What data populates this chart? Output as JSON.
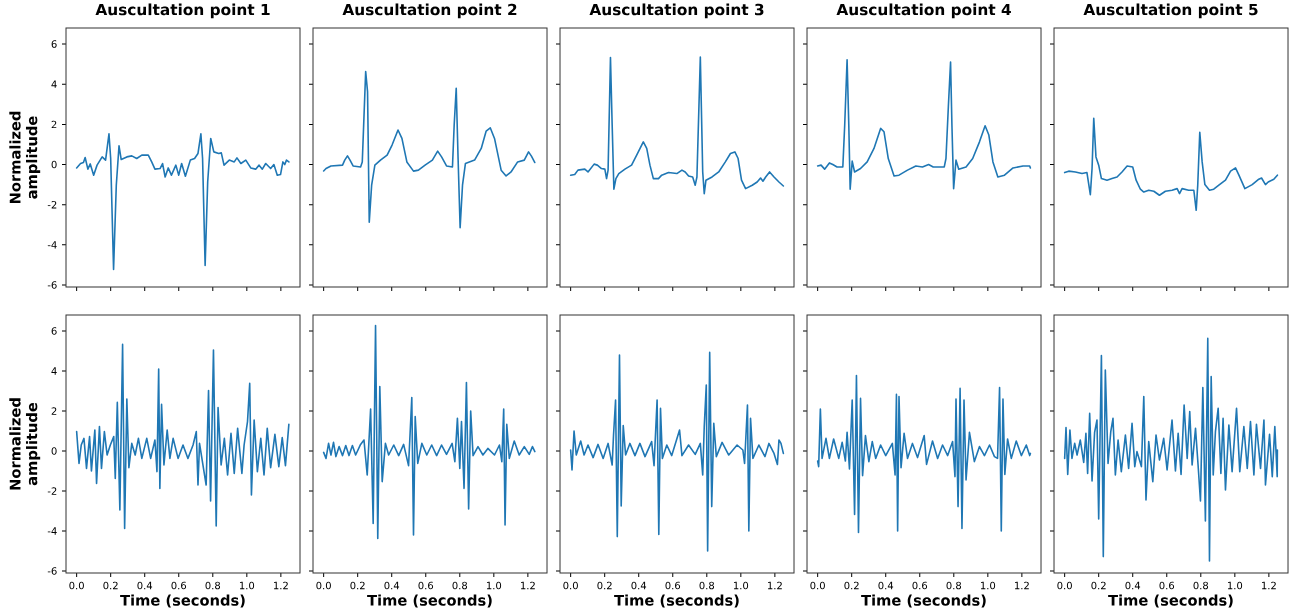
{
  "chart_data": [
    {
      "type": "line",
      "title": "Auscultation point 1",
      "ylabel": "Normalized amplitude",
      "tick_labels": "y",
      "color": "#1f77b4",
      "xlim": [
        -0.0625,
        1.3125
      ],
      "ylim": [
        -6.1,
        6.8
      ],
      "xticks": [
        {
          "value": 0,
          "label": null
        },
        {
          "value": 0.2,
          "label": null
        },
        {
          "value": 0.4,
          "label": null
        },
        {
          "value": 0.6,
          "label": null
        },
        {
          "value": 0.8,
          "label": null
        },
        {
          "value": 1.0,
          "label": null
        },
        {
          "value": 1.2,
          "label": null
        }
      ],
      "yticks": [
        -6,
        -4,
        -2,
        0,
        2,
        4,
        6
      ],
      "x": [
        0,
        0.023,
        0.04,
        0.05,
        0.066,
        0.08,
        0.1,
        0.12,
        0.15,
        0.17,
        0.19,
        0.2,
        0.217,
        0.233,
        0.249,
        0.262,
        0.295,
        0.324,
        0.353,
        0.383,
        0.421,
        0.441,
        0.46,
        0.49,
        0.505,
        0.52,
        0.538,
        0.557,
        0.583,
        0.6,
        0.617,
        0.639,
        0.668,
        0.693,
        0.713,
        0.73,
        0.74,
        0.755,
        0.77,
        0.788,
        0.806,
        0.835,
        0.85,
        0.866,
        0.897,
        0.926,
        0.942,
        0.965,
        0.994,
        1.023,
        1.052,
        1.072,
        1.091,
        1.111,
        1.14,
        1.159,
        1.179,
        1.198,
        1.212,
        1.223,
        1.233,
        1.247
      ],
      "values": [
        -0.17,
        0.05,
        0.1,
        0.35,
        -0.23,
        0.03,
        -0.53,
        -0.03,
        0.38,
        0.22,
        1.53,
        0.3,
        -5.23,
        -1.03,
        0.93,
        0.25,
        0.38,
        0.43,
        0.3,
        0.47,
        0.47,
        0.13,
        -0.23,
        -0.2,
        0.05,
        -0.62,
        -0.17,
        -0.53,
        -0.03,
        -0.53,
        0.05,
        -0.58,
        0.22,
        0.3,
        0.55,
        1.53,
        0.3,
        -5.03,
        -0.87,
        1.3,
        0.63,
        0.55,
        0.58,
        -0.03,
        0.22,
        0.13,
        0.33,
        0.05,
        0.22,
        -0.17,
        -0.23,
        -0.03,
        -0.23,
        0.05,
        -0.2,
        0,
        -0.53,
        -0.5,
        0.13,
        0,
        0.22,
        0.13
      ]
    },
    {
      "type": "line",
      "title": "Auscultation point 2",
      "tick_labels": false,
      "color": "#1f77b4",
      "xlim": [
        -0.0625,
        1.3125
      ],
      "ylim": [
        -6.1,
        6.8
      ],
      "xticks": [
        {
          "value": 0,
          "label": null
        },
        {
          "value": 0.2,
          "label": null
        },
        {
          "value": 0.4,
          "label": null
        },
        {
          "value": 0.6,
          "label": null
        },
        {
          "value": 0.8,
          "label": null
        },
        {
          "value": 1.0,
          "label": null
        },
        {
          "value": 1.2,
          "label": null
        }
      ],
      "yticks": [
        {
          "value": -6,
          "label": null
        },
        {
          "value": -4,
          "label": null
        },
        {
          "value": -2,
          "label": null
        },
        {
          "value": 0,
          "label": null
        },
        {
          "value": 2,
          "label": null
        },
        {
          "value": 4,
          "label": null
        },
        {
          "value": 6,
          "label": null
        }
      ],
      "x": [
        0,
        0.014,
        0.043,
        0.111,
        0.124,
        0.14,
        0.155,
        0.173,
        0.217,
        0.227,
        0.247,
        0.258,
        0.268,
        0.282,
        0.301,
        0.334,
        0.373,
        0.402,
        0.437,
        0.46,
        0.489,
        0.528,
        0.557,
        0.596,
        0.639,
        0.67,
        0.693,
        0.722,
        0.757,
        0.767,
        0.779,
        0.79,
        0.802,
        0.816,
        0.833,
        0.887,
        0.926,
        0.955,
        0.979,
        1.004,
        1.043,
        1.072,
        1.101,
        1.14,
        1.179,
        1.204,
        1.221,
        1.241
      ],
      "values": [
        -0.32,
        -0.2,
        -0.07,
        -0.03,
        0.22,
        0.43,
        0.22,
        -0.07,
        -0.12,
        0.13,
        4.63,
        3.63,
        -2.87,
        -1.03,
        -0.03,
        0.22,
        0.47,
        0.97,
        1.72,
        1.3,
        0.13,
        -0.33,
        -0.28,
        -0.03,
        0.22,
        0.67,
        0.38,
        -0.07,
        -0.12,
        1.97,
        3.8,
        0.3,
        -3.15,
        -1.03,
        0.05,
        0.22,
        0.8,
        1.67,
        1.83,
        1.3,
        -0.28,
        -0.57,
        -0.37,
        0.13,
        0.22,
        0.63,
        0.42,
        0.1
      ]
    },
    {
      "type": "line",
      "title": "Auscultation point 3",
      "tick_labels": false,
      "color": "#1f77b4",
      "xlim": [
        -0.0625,
        1.3125
      ],
      "ylim": [
        -6.1,
        6.8
      ],
      "xticks": [
        {
          "value": 0,
          "label": null
        },
        {
          "value": 0.2,
          "label": null
        },
        {
          "value": 0.4,
          "label": null
        },
        {
          "value": 0.6,
          "label": null
        },
        {
          "value": 0.8,
          "label": null
        },
        {
          "value": 1.0,
          "label": null
        },
        {
          "value": 1.2,
          "label": null
        }
      ],
      "yticks": [
        {
          "value": -6,
          "label": null
        },
        {
          "value": -4,
          "label": null
        },
        {
          "value": -2,
          "label": null
        },
        {
          "value": 0,
          "label": null
        },
        {
          "value": 2,
          "label": null
        },
        {
          "value": 4,
          "label": null
        },
        {
          "value": 6,
          "label": null
        }
      ],
      "x": [
        0,
        0.024,
        0.043,
        0.083,
        0.102,
        0.138,
        0.157,
        0.181,
        0.201,
        0.211,
        0.22,
        0.234,
        0.244,
        0.254,
        0.266,
        0.283,
        0.319,
        0.358,
        0.388,
        0.427,
        0.447,
        0.466,
        0.486,
        0.516,
        0.535,
        0.575,
        0.624,
        0.654,
        0.673,
        0.693,
        0.717,
        0.732,
        0.742,
        0.762,
        0.776,
        0.785,
        0.795,
        0.831,
        0.87,
        0.909,
        0.939,
        0.965,
        0.984,
        1.004,
        1.028,
        1.067,
        1.096,
        1.116,
        1.13,
        1.146,
        1.169,
        1.195,
        1.224,
        1.25
      ],
      "values": [
        -0.53,
        -0.5,
        -0.28,
        -0.23,
        -0.37,
        0.02,
        -0.03,
        -0.2,
        -0.23,
        -0.7,
        -0.28,
        5.33,
        1.97,
        -1.23,
        -0.7,
        -0.45,
        -0.23,
        -0.03,
        0.47,
        1.13,
        0.8,
        -0.03,
        -0.7,
        -0.7,
        -0.53,
        -0.4,
        -0.45,
        -0.28,
        -0.37,
        -0.57,
        -0.62,
        -1.03,
        -0.62,
        5.35,
        -0.37,
        -1.45,
        -0.78,
        -0.62,
        -0.37,
        0.13,
        0.55,
        0.63,
        0.3,
        -0.78,
        -1.2,
        -1.03,
        -0.87,
        -0.67,
        -0.83,
        -0.62,
        -0.37,
        -0.62,
        -0.87,
        -1.07
      ]
    },
    {
      "type": "line",
      "title": "Auscultation point 4",
      "tick_labels": false,
      "color": "#1f77b4",
      "xlim": [
        -0.0625,
        1.3125
      ],
      "ylim": [
        -6.1,
        6.8
      ],
      "xticks": [
        {
          "value": 0,
          "label": null
        },
        {
          "value": 0.2,
          "label": null
        },
        {
          "value": 0.4,
          "label": null
        },
        {
          "value": 0.6,
          "label": null
        },
        {
          "value": 0.8,
          "label": null
        },
        {
          "value": 1.0,
          "label": null
        },
        {
          "value": 1.2,
          "label": null
        }
      ],
      "yticks": [
        {
          "value": -6,
          "label": null
        },
        {
          "value": -4,
          "label": null
        },
        {
          "value": -2,
          "label": null
        },
        {
          "value": 0,
          "label": null
        },
        {
          "value": 2,
          "label": null
        },
        {
          "value": 4,
          "label": null
        },
        {
          "value": 6,
          "label": null
        }
      ],
      "x": [
        0,
        0.02,
        0.041,
        0.069,
        0.089,
        0.114,
        0.148,
        0.159,
        0.173,
        0.183,
        0.191,
        0.203,
        0.217,
        0.252,
        0.291,
        0.331,
        0.37,
        0.39,
        0.415,
        0.449,
        0.478,
        0.528,
        0.577,
        0.616,
        0.652,
        0.679,
        0.744,
        0.754,
        0.768,
        0.781,
        0.789,
        0.799,
        0.813,
        0.829,
        0.872,
        0.911,
        0.951,
        0.984,
        1.006,
        1.03,
        1.059,
        1.098,
        1.148,
        1.207,
        1.246,
        1.25
      ],
      "values": [
        -0.07,
        -0.03,
        -0.23,
        0.08,
        0,
        -0.12,
        -0.12,
        1.97,
        5.22,
        1.97,
        -1.23,
        0.17,
        -0.37,
        -0.2,
        0.13,
        0.8,
        1.8,
        1.63,
        0.3,
        -0.57,
        -0.53,
        -0.28,
        -0.07,
        -0.12,
        0,
        -0.12,
        -0.12,
        0.3,
        2.88,
        5.1,
        1.97,
        -1.2,
        0.22,
        -0.23,
        -0.12,
        0.3,
        1.13,
        1.93,
        1.47,
        0.13,
        -0.62,
        -0.53,
        -0.17,
        -0.07,
        -0.07,
        -0.17
      ]
    },
    {
      "type": "line",
      "title": "Auscultation point 5",
      "tick_labels": false,
      "color": "#1f77b4",
      "xlim": [
        -0.0625,
        1.3125
      ],
      "ylim": [
        -6.1,
        6.8
      ],
      "xticks": [
        {
          "value": 0,
          "label": null
        },
        {
          "value": 0.2,
          "label": null
        },
        {
          "value": 0.4,
          "label": null
        },
        {
          "value": 0.6,
          "label": null
        },
        {
          "value": 0.8,
          "label": null
        },
        {
          "value": 1.0,
          "label": null
        },
        {
          "value": 1.2,
          "label": null
        }
      ],
      "yticks": [
        {
          "value": -6,
          "label": null
        },
        {
          "value": -4,
          "label": null
        },
        {
          "value": -2,
          "label": null
        },
        {
          "value": 0,
          "label": null
        },
        {
          "value": 2,
          "label": null
        },
        {
          "value": 4,
          "label": null
        },
        {
          "value": 6,
          "label": null
        }
      ],
      "x": [
        0,
        0.024,
        0.063,
        0.102,
        0.131,
        0.151,
        0.161,
        0.171,
        0.184,
        0.2,
        0.216,
        0.249,
        0.278,
        0.308,
        0.337,
        0.367,
        0.4,
        0.42,
        0.445,
        0.465,
        0.494,
        0.524,
        0.557,
        0.592,
        0.631,
        0.661,
        0.675,
        0.69,
        0.729,
        0.759,
        0.773,
        0.782,
        0.794,
        0.808,
        0.824,
        0.851,
        0.876,
        0.906,
        0.945,
        0.975,
        1.004,
        1.024,
        1.059,
        1.102,
        1.141,
        1.157,
        1.18,
        1.196,
        1.229,
        1.25
      ],
      "values": [
        -0.4,
        -0.33,
        -0.37,
        -0.45,
        -0.4,
        -1.5,
        -0.2,
        2.3,
        0.38,
        -0.03,
        -0.7,
        -0.78,
        -0.7,
        -0.62,
        -0.37,
        -0.07,
        -0.12,
        -0.78,
        -1.23,
        -1.37,
        -1.28,
        -1.33,
        -1.53,
        -1.33,
        -1.28,
        -1.2,
        -1.45,
        -1.2,
        -1.28,
        -1.28,
        -2.28,
        -1.03,
        1.6,
        0.13,
        -1.0,
        -1.28,
        -1.23,
        -1.03,
        -0.78,
        -0.33,
        -0.17,
        -0.53,
        -1.2,
        -1.0,
        -0.73,
        -0.67,
        -1.0,
        -0.87,
        -0.73,
        -0.53
      ]
    },
    {
      "type": "line",
      "xlabel": "Time (seconds)",
      "ylabel": "Normalized amplitude",
      "color": "#1f77b4",
      "xlim": [
        -0.0625,
        1.3125
      ],
      "ylim": [
        -6.1,
        6.8
      ],
      "xticks": [
        {
          "value": 0,
          "label": "0.0"
        },
        {
          "value": 0.2,
          "label": "0.2"
        },
        {
          "value": 0.4,
          "label": "0.4"
        },
        {
          "value": 0.6,
          "label": "0.6"
        },
        {
          "value": 0.8,
          "label": "0.8"
        },
        {
          "value": 1.0,
          "label": "1.0"
        },
        {
          "value": 1.2,
          "label": "1.2"
        }
      ],
      "yticks": [
        -6,
        -4,
        -2,
        0,
        2,
        4,
        6
      ],
      "x": [
        0,
        0.014,
        0.027,
        0.043,
        0.058,
        0.076,
        0.087,
        0.107,
        0.117,
        0.134,
        0.146,
        0.163,
        0.179,
        0.198,
        0.218,
        0.227,
        0.239,
        0.254,
        0.27,
        0.282,
        0.295,
        0.307,
        0.324,
        0.344,
        0.363,
        0.383,
        0.412,
        0.435,
        0.46,
        0.472,
        0.482,
        0.489,
        0.499,
        0.513,
        0.532,
        0.548,
        0.567,
        0.596,
        0.625,
        0.654,
        0.684,
        0.703,
        0.713,
        0.722,
        0.761,
        0.775,
        0.787,
        0.804,
        0.82,
        0.831,
        0.849,
        0.868,
        0.887,
        0.907,
        0.926,
        0.946,
        0.971,
        0.984,
        1.004,
        1.017,
        1.027,
        1.043,
        1.062,
        1.082,
        1.101,
        1.12,
        1.14,
        1.165,
        1.188,
        1.208,
        1.227,
        1.247
      ],
      "values": [
        0.97,
        -0.62,
        0.3,
        0.63,
        -0.87,
        0.72,
        -1.0,
        1.05,
        -1.62,
        1.22,
        -0.87,
        0.97,
        -0.2,
        0.3,
        0.72,
        -1.37,
        2.43,
        -2.95,
        5.33,
        -3.87,
        2.6,
        -0.83,
        0.38,
        -0.2,
        0.63,
        -0.37,
        0.63,
        -0.37,
        0.55,
        -1.03,
        4.1,
        -1.87,
        2.33,
        -0.7,
        1.05,
        -0.37,
        0.63,
        -0.37,
        0.3,
        -0.37,
        0.3,
        0.97,
        -1.7,
        0.38,
        -1.7,
        3.02,
        -2.5,
        5.05,
        -3.75,
        2.17,
        -0.7,
        0.63,
        -1.2,
        0.88,
        -1.12,
        1.13,
        -1.12,
        0.3,
        1.47,
        3.38,
        -2.2,
        1.55,
        -1.03,
        0.63,
        -1.2,
        1.13,
        -0.83,
        0.83,
        -0.78,
        0.67,
        -0.73,
        1.33
      ]
    },
    {
      "type": "line",
      "xlabel": "Time (seconds)",
      "tick_labels": "x",
      "color": "#1f77b4",
      "xlim": [
        -0.0625,
        1.3125
      ],
      "ylim": [
        -6.1,
        6.8
      ],
      "xticks": [
        {
          "value": 0,
          "label": "0.0"
        },
        {
          "value": 0.2,
          "label": "0.2"
        },
        {
          "value": 0.4,
          "label": "0.4"
        },
        {
          "value": 0.6,
          "label": "0.6"
        },
        {
          "value": 0.8,
          "label": "0.8"
        },
        {
          "value": 1.0,
          "label": "1.0"
        },
        {
          "value": 1.2,
          "label": "1.2"
        }
      ],
      "yticks": [
        -6,
        -4,
        -2,
        0,
        2,
        4,
        6
      ],
      "x": [
        0,
        0.014,
        0.029,
        0.043,
        0.058,
        0.072,
        0.091,
        0.111,
        0.13,
        0.149,
        0.169,
        0.188,
        0.217,
        0.237,
        0.256,
        0.276,
        0.291,
        0.305,
        0.318,
        0.33,
        0.344,
        0.363,
        0.382,
        0.412,
        0.441,
        0.47,
        0.499,
        0.518,
        0.528,
        0.538,
        0.553,
        0.577,
        0.606,
        0.635,
        0.664,
        0.693,
        0.722,
        0.755,
        0.771,
        0.786,
        0.8,
        0.81,
        0.825,
        0.839,
        0.852,
        0.864,
        0.878,
        0.907,
        0.936,
        0.965,
        1.004,
        1.033,
        1.047,
        1.058,
        1.066,
        1.076,
        1.091,
        1.12,
        1.149,
        1.179,
        1.208,
        1.227,
        1.241
      ],
      "values": [
        -0.07,
        -0.37,
        0.38,
        -0.2,
        0.43,
        -0.28,
        0.22,
        -0.23,
        0.27,
        -0.23,
        0.27,
        -0.2,
        0.33,
        0.55,
        -1.2,
        2.1,
        -3.62,
        6.27,
        -4.37,
        3.22,
        -1.53,
        0.38,
        -0.2,
        0.3,
        -0.23,
        0.33,
        -0.73,
        2.67,
        -4.2,
        1.72,
        -0.62,
        0.38,
        -0.2,
        0.3,
        -0.23,
        0.3,
        -0.17,
        0.38,
        -0.53,
        1.63,
        -0.87,
        1.47,
        -1.87,
        3.42,
        -2.9,
        2.0,
        -0.23,
        0.22,
        -0.2,
        0.13,
        -0.2,
        0.3,
        -0.53,
        2.1,
        -3.7,
        1.33,
        -0.37,
        0.5,
        -0.2,
        0.22,
        -0.17,
        0.22,
        -0.03
      ]
    },
    {
      "type": "line",
      "xlabel": "Time (seconds)",
      "tick_labels": "x",
      "color": "#1f77b4",
      "xlim": [
        -0.0625,
        1.3125
      ],
      "ylim": [
        -6.1,
        6.8
      ],
      "xticks": [
        {
          "value": 0,
          "label": "0.0"
        },
        {
          "value": 0.2,
          "label": "0.2"
        },
        {
          "value": 0.4,
          "label": "0.4"
        },
        {
          "value": 0.6,
          "label": "0.6"
        },
        {
          "value": 0.8,
          "label": "0.8"
        },
        {
          "value": 1.0,
          "label": "1.0"
        },
        {
          "value": 1.2,
          "label": "1.2"
        }
      ],
      "yticks": [
        -6,
        -4,
        -2,
        0,
        2,
        4,
        6
      ],
      "x": [
        0,
        0.008,
        0.02,
        0.033,
        0.059,
        0.079,
        0.102,
        0.132,
        0.161,
        0.191,
        0.22,
        0.244,
        0.252,
        0.264,
        0.274,
        0.287,
        0.297,
        0.309,
        0.323,
        0.348,
        0.378,
        0.407,
        0.437,
        0.476,
        0.49,
        0.508,
        0.518,
        0.528,
        0.539,
        0.565,
        0.594,
        0.64,
        0.654,
        0.693,
        0.732,
        0.762,
        0.776,
        0.785,
        0.797,
        0.805,
        0.817,
        0.829,
        0.841,
        0.856,
        0.89,
        0.929,
        0.978,
        1.012,
        1.022,
        1.039,
        1.047,
        1.057,
        1.071,
        1.106,
        1.142,
        1.165,
        1.195,
        1.215,
        1.224,
        1.236,
        1.25
      ],
      "values": [
        0.05,
        -0.95,
        1.0,
        -0.2,
        0.5,
        -0.2,
        0.3,
        -0.33,
        0.33,
        -0.37,
        0.38,
        -0.7,
        0.8,
        2.55,
        -4.28,
        4.8,
        -2.75,
        1.27,
        -0.2,
        0.38,
        -0.23,
        0.38,
        -0.28,
        0.47,
        -0.73,
        2.55,
        -4.17,
        2.13,
        -0.37,
        0.3,
        -0.23,
        1.05,
        -0.23,
        0.3,
        -0.17,
        0.38,
        -1.2,
        1.22,
        3.3,
        -5.0,
        4.93,
        -2.78,
        1.38,
        -0.28,
        0.43,
        -0.2,
        0.3,
        0.05,
        -0.62,
        2.3,
        -4.0,
        1.63,
        -0.37,
        0.3,
        -0.28,
        0.38,
        -0.12,
        -0.67,
        0.55,
        0.38,
        -0.12
      ]
    },
    {
      "type": "line",
      "xlabel": "Time (seconds)",
      "tick_labels": "x",
      "color": "#1f77b4",
      "xlim": [
        -0.0625,
        1.3125
      ],
      "ylim": [
        -6.1,
        6.8
      ],
      "xticks": [
        {
          "value": 0,
          "label": "0.0"
        },
        {
          "value": 0.2,
          "label": "0.2"
        },
        {
          "value": 0.4,
          "label": "0.4"
        },
        {
          "value": 0.6,
          "label": "0.6"
        },
        {
          "value": 0.8,
          "label": "0.8"
        },
        {
          "value": 1.0,
          "label": "1.0"
        },
        {
          "value": 1.2,
          "label": "1.2"
        }
      ],
      "yticks": [
        -6,
        -4,
        -2,
        0,
        2,
        4,
        6
      ],
      "x": [
        0,
        0.006,
        0.016,
        0.026,
        0.049,
        0.069,
        0.094,
        0.124,
        0.144,
        0.163,
        0.173,
        0.187,
        0.203,
        0.217,
        0.228,
        0.24,
        0.252,
        0.264,
        0.281,
        0.301,
        0.321,
        0.341,
        0.37,
        0.4,
        0.439,
        0.455,
        0.463,
        0.47,
        0.478,
        0.49,
        0.508,
        0.528,
        0.557,
        0.587,
        0.626,
        0.64,
        0.675,
        0.705,
        0.734,
        0.764,
        0.793,
        0.807,
        0.813,
        0.825,
        0.837,
        0.848,
        0.86,
        0.872,
        0.892,
        0.921,
        0.951,
        0.98,
        1.01,
        1.039,
        1.057,
        1.069,
        1.079,
        1.089,
        1.1,
        1.116,
        1.138,
        1.167,
        1.197,
        1.226,
        1.246,
        1.25
      ],
      "values": [
        -0.5,
        -0.78,
        2.1,
        -0.37,
        0.63,
        -0.37,
        0.6,
        -0.37,
        0.43,
        -0.5,
        0.93,
        -0.9,
        2.55,
        -3.17,
        3.77,
        -4.07,
        2.63,
        -1.23,
        0.77,
        -0.53,
        0.47,
        -0.37,
        0.3,
        -0.23,
        0.38,
        -1.2,
        2.83,
        -4.0,
        2.72,
        -0.83,
        0.88,
        -0.37,
        0.38,
        -0.33,
        0.77,
        -0.67,
        0.5,
        -0.37,
        0.3,
        -0.23,
        0.47,
        -1.28,
        2.6,
        -2.78,
        3.13,
        -3.87,
        2.55,
        -1.45,
        0.93,
        -0.53,
        0.22,
        -0.23,
        0.3,
        -0.28,
        -0.37,
        3.17,
        -4.0,
        2.6,
        -1.17,
        0.6,
        -0.37,
        0.5,
        -0.23,
        0.3,
        -0.23,
        -0.12
      ]
    },
    {
      "type": "line",
      "xlabel": "Time (seconds)",
      "tick_labels": "x",
      "color": "#1f77b4",
      "xlim": [
        -0.0625,
        1.3125
      ],
      "ylim": [
        -6.1,
        6.8
      ],
      "xticks": [
        {
          "value": 0,
          "label": "0.0"
        },
        {
          "value": 0.2,
          "label": "0.2"
        },
        {
          "value": 0.4,
          "label": "0.4"
        },
        {
          "value": 0.6,
          "label": "0.6"
        },
        {
          "value": 0.8,
          "label": "0.8"
        },
        {
          "value": 1.0,
          "label": "1.0"
        },
        {
          "value": 1.2,
          "label": "1.2"
        }
      ],
      "yticks": [
        -6,
        -4,
        -2,
        0,
        2,
        4,
        6
      ],
      "x": [
        0,
        0.008,
        0.018,
        0.031,
        0.043,
        0.059,
        0.073,
        0.092,
        0.112,
        0.125,
        0.135,
        0.147,
        0.161,
        0.176,
        0.19,
        0.2,
        0.216,
        0.227,
        0.239,
        0.255,
        0.271,
        0.284,
        0.298,
        0.314,
        0.333,
        0.357,
        0.376,
        0.396,
        0.412,
        0.425,
        0.451,
        0.465,
        0.478,
        0.494,
        0.518,
        0.537,
        0.557,
        0.582,
        0.602,
        0.631,
        0.651,
        0.667,
        0.684,
        0.702,
        0.72,
        0.735,
        0.749,
        0.769,
        0.784,
        0.798,
        0.812,
        0.827,
        0.841,
        0.851,
        0.861,
        0.873,
        0.886,
        0.902,
        0.918,
        0.931,
        0.945,
        0.965,
        0.984,
        1.01,
        1.029,
        1.053,
        1.073,
        1.092,
        1.112,
        1.127,
        1.151,
        1.171,
        1.18,
        1.204,
        1.22,
        1.235,
        1.249,
        1.25
      ],
      "values": [
        -0.37,
        1.17,
        -1.17,
        1.05,
        -0.37,
        0.38,
        -0.2,
        0.55,
        -0.57,
        0.88,
        -1.12,
        1.88,
        -1.5,
        0.93,
        1.55,
        -3.4,
        4.77,
        -5.28,
        4.05,
        -0.62,
        0.97,
        1.63,
        -1.2,
        0.55,
        -1.03,
        0.8,
        -0.87,
        1.38,
        -0.78,
        -0.03,
        -0.78,
        2.72,
        -2.45,
        0.47,
        -1.53,
        0.8,
        -0.45,
        0.63,
        -0.95,
        1.55,
        -1.0,
        0.88,
        -1.17,
        2.3,
        -0.37,
        1.97,
        -0.7,
        1.13,
        -0.7,
        -2.5,
        3.17,
        -3.5,
        5.63,
        -5.5,
        3.72,
        -1.2,
        0.97,
        2.13,
        -1.12,
        1.63,
        -1.95,
        1.3,
        -1.03,
        2.13,
        -1.03,
        1.22,
        -0.87,
        1.47,
        -1.2,
        1.33,
        -0.87,
        1.55,
        -1.7,
        0.83,
        -1.28,
        1.22,
        -1.28,
        0.05
      ]
    }
  ]
}
